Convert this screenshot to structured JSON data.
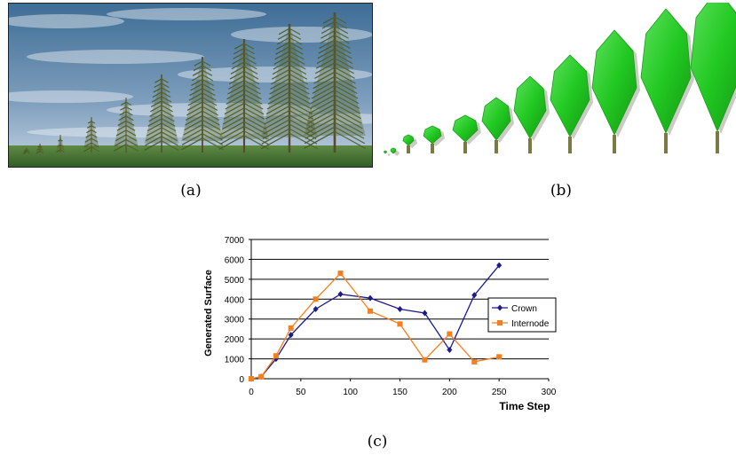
{
  "captions": {
    "a": "(a)",
    "b": "(b)",
    "c": "(c)"
  },
  "chart_data": {
    "type": "line",
    "title": "",
    "xlabel": "Time Step",
    "ylabel": "Generated Surface",
    "xlim": [
      0,
      300
    ],
    "ylim": [
      0,
      7000
    ],
    "x_ticks": [
      0,
      50,
      100,
      150,
      200,
      250,
      300
    ],
    "y_ticks": [
      0,
      1000,
      2000,
      3000,
      4000,
      5000,
      6000,
      7000
    ],
    "grid": "horizontal",
    "legend_position": "right",
    "series": [
      {
        "name": "Crown",
        "color": "#1a1a8c",
        "marker": "diamond",
        "x": [
          0,
          10,
          25,
          40,
          65,
          90,
          120,
          150,
          175,
          200,
          225,
          250
        ],
        "y": [
          0,
          100,
          1000,
          2200,
          3500,
          4250,
          4050,
          3500,
          3300,
          1450,
          4200,
          5700
        ]
      },
      {
        "name": "Internode",
        "color": "#f57f1e",
        "marker": "square",
        "x": [
          0,
          10,
          25,
          40,
          65,
          90,
          120,
          150,
          175,
          200,
          225,
          250
        ],
        "y": [
          0,
          100,
          1150,
          2550,
          4000,
          5300,
          3400,
          2750,
          950,
          2250,
          850,
          1100
        ]
      }
    ]
  }
}
